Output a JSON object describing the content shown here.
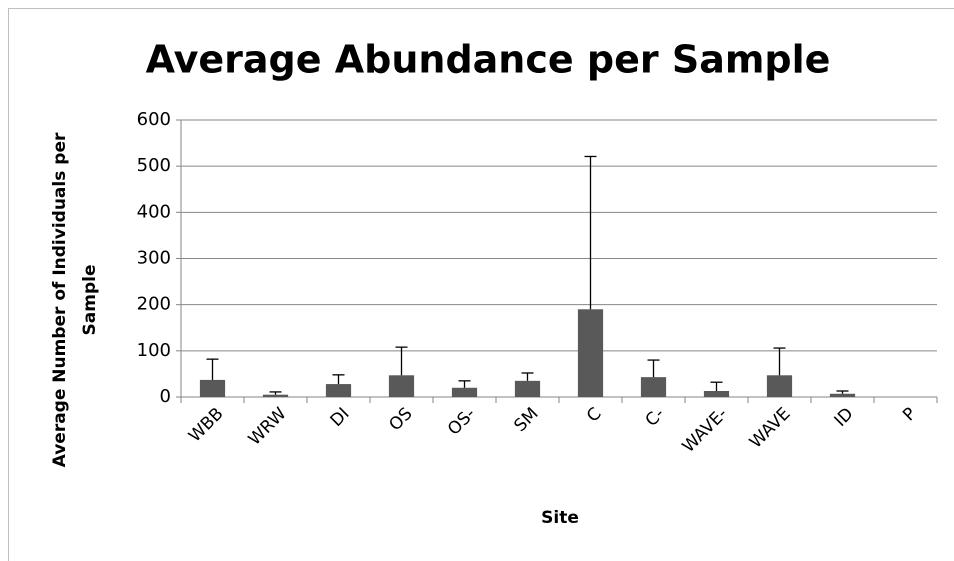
{
  "chart_data": {
    "type": "bar",
    "title": "Average Abundance per Sample",
    "x_label": "Site",
    "y_label": [
      "Average Number of  Individuals per",
      "Sample"
    ],
    "categories": [
      "WBB",
      "WRW",
      "DI",
      "OS",
      "OS-",
      "SM",
      "C",
      "C-",
      "WAVE-",
      "WAVE",
      "ID",
      "P"
    ],
    "values": [
      37,
      5,
      28,
      47,
      20,
      35,
      190,
      43,
      13,
      47,
      7,
      0
    ],
    "errors": [
      45,
      6,
      20,
      61,
      15,
      17,
      331,
      37,
      19,
      59,
      6,
      0
    ],
    "color": "#595959",
    "ylim": [
      0,
      600
    ],
    "yticks": [
      0,
      100,
      200,
      300,
      400,
      500,
      600
    ],
    "grid": true
  }
}
